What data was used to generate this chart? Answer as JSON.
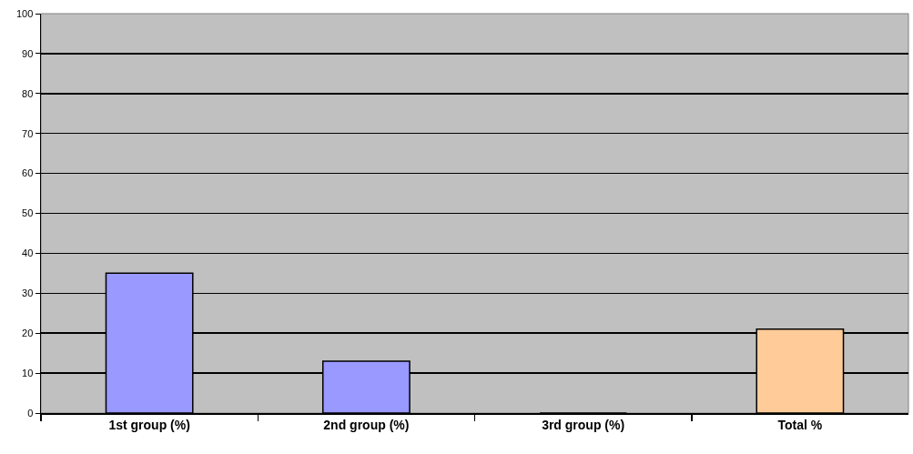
{
  "chart_data": {
    "type": "bar",
    "categories": [
      "1st group (%)",
      "2nd group (%)",
      "3rd group (%)",
      "Total %"
    ],
    "values": [
      35,
      13,
      0,
      21
    ],
    "colors": [
      "#9999ff",
      "#9999ff",
      "#9999ff",
      "#ffcc99"
    ],
    "ylim": [
      0,
      100
    ],
    "yticks": [
      0,
      10,
      20,
      30,
      40,
      50,
      60,
      70,
      80,
      90,
      100
    ],
    "grid": "y"
  }
}
